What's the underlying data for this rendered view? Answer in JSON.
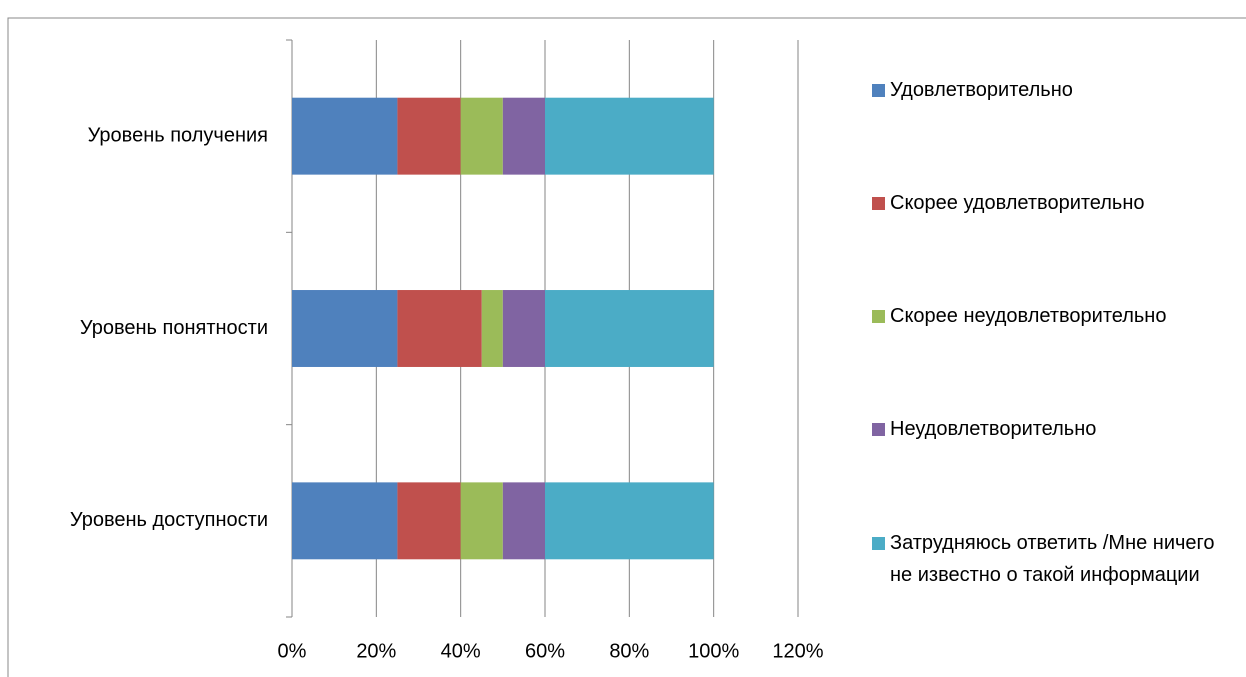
{
  "chart_data": {
    "type": "stacked_barh",
    "categories": [
      "Уровень получения",
      "Уровень понятности",
      "Уровень доступности"
    ],
    "series": [
      {
        "name": "Удовлетворительно",
        "color": "#4f81bd",
        "values": [
          25,
          25,
          25
        ]
      },
      {
        "name": "Скорее удовлетворительно",
        "color": "#c0504d",
        "values": [
          15,
          20,
          15
        ]
      },
      {
        "name": "Скорее неудовлетворительно",
        "color": "#9bbb59",
        "values": [
          10,
          5,
          10
        ]
      },
      {
        "name": "Неудовлетворительно",
        "color": "#8064a2",
        "values": [
          10,
          10,
          10
        ]
      },
      {
        "name": "Затрудняюсь ответить /Мне ничего не известно о такой информации",
        "color": "#4bacc6",
        "values": [
          40,
          40,
          40
        ]
      }
    ],
    "xlim": [
      0,
      120
    ],
    "xticks": [
      {
        "value": 0,
        "label": "0%"
      },
      {
        "value": 20,
        "label": "20%"
      },
      {
        "value": 40,
        "label": "40%"
      },
      {
        "value": 60,
        "label": "60%"
      },
      {
        "value": 80,
        "label": "80%"
      },
      {
        "value": 100,
        "label": "100%"
      },
      {
        "value": 120,
        "label": "120%"
      }
    ],
    "grid": true,
    "legend": "right"
  }
}
